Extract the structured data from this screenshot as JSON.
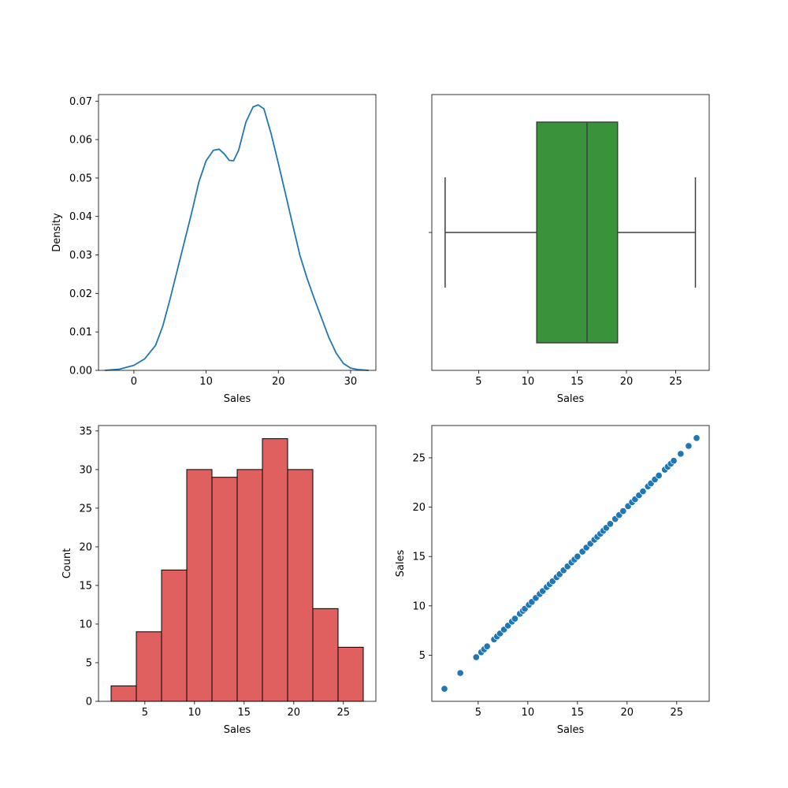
{
  "chart_data": [
    {
      "type": "line",
      "subtype": "kde",
      "title": "",
      "xlabel": "Sales",
      "ylabel": "Density",
      "xlim": [
        -4.9,
        33.5
      ],
      "ylim": [
        0,
        0.0717
      ],
      "xticks": [
        0,
        10,
        20,
        30
      ],
      "yticks": [
        0.0,
        0.01,
        0.02,
        0.03,
        0.04,
        0.05,
        0.06,
        0.07
      ],
      "ytick_labels": [
        "0.00",
        "0.01",
        "0.02",
        "0.03",
        "0.04",
        "0.05",
        "0.06",
        "0.07"
      ],
      "grid": false,
      "color": "#1f77b4",
      "x": [
        -4.0,
        -2.0,
        0.0,
        1.5,
        3.0,
        4.0,
        5.0,
        6.0,
        7.0,
        8.0,
        9.0,
        10.0,
        11.0,
        11.8,
        12.5,
        13.2,
        13.8,
        14.5,
        15.5,
        16.5,
        17.2,
        18.0,
        19.0,
        20.0,
        21.0,
        22.0,
        23.0,
        24.0,
        25.0,
        26.0,
        27.0,
        28.0,
        29.0,
        30.0,
        31.0,
        32.5
      ],
      "y": [
        0.0,
        0.0003,
        0.0013,
        0.003,
        0.0065,
        0.0115,
        0.0185,
        0.026,
        0.0335,
        0.041,
        0.049,
        0.0545,
        0.0572,
        0.0575,
        0.0563,
        0.0546,
        0.0545,
        0.0572,
        0.0645,
        0.0685,
        0.069,
        0.068,
        0.0615,
        0.0538,
        0.0458,
        0.0377,
        0.0298,
        0.0238,
        0.0185,
        0.0135,
        0.0085,
        0.0045,
        0.0018,
        0.0006,
        0.0002,
        0.0
      ]
    },
    {
      "type": "box",
      "title": "",
      "xlabel": "Sales",
      "ylabel": "",
      "xlim": [
        0.25,
        28.4
      ],
      "xticks": [
        5,
        10,
        15,
        20,
        25
      ],
      "grid": false,
      "color": "#3a923a",
      "line_color": "#3f3f3f",
      "whisker_low": 1.6,
      "q1": 10.9,
      "median": 16.0,
      "q3": 19.1,
      "whisker_high": 27.0
    },
    {
      "type": "bar",
      "subtype": "histogram",
      "title": "",
      "xlabel": "Sales",
      "ylabel": "Count",
      "xlim": [
        0.33,
        28.27
      ],
      "ylim": [
        0,
        35.7
      ],
      "xticks": [
        5,
        10,
        15,
        20,
        25
      ],
      "yticks": [
        0,
        5,
        10,
        15,
        20,
        25,
        30,
        35
      ],
      "grid": false,
      "color": "#e06060",
      "edge_color": "#000000",
      "bin_edges": [
        1.6,
        4.14,
        6.68,
        9.22,
        11.76,
        14.3,
        16.84,
        19.38,
        21.92,
        24.46,
        27.0
      ],
      "values": [
        2,
        9,
        17,
        30,
        29,
        30,
        34,
        30,
        12,
        7
      ]
    },
    {
      "type": "scatter",
      "title": "",
      "xlabel": "Sales",
      "ylabel": "Sales",
      "xlim": [
        0.33,
        28.27
      ],
      "ylim": [
        0.33,
        28.27
      ],
      "xticks": [
        5,
        10,
        15,
        20,
        25
      ],
      "yticks": [
        5,
        10,
        15,
        20,
        25
      ],
      "grid": false,
      "color": "#1f77b4",
      "x": [
        1.6,
        3.2,
        4.8,
        5.3,
        5.6,
        5.9,
        6.6,
        6.9,
        7.2,
        7.6,
        8.0,
        8.4,
        8.7,
        9.2,
        9.5,
        9.7,
        10.1,
        10.4,
        10.8,
        11.2,
        11.5,
        11.9,
        12.2,
        12.5,
        12.9,
        13.2,
        13.6,
        14.0,
        14.4,
        14.7,
        15.0,
        15.5,
        15.9,
        16.3,
        16.7,
        17.0,
        17.3,
        17.6,
        17.9,
        18.3,
        18.8,
        19.2,
        19.6,
        20.1,
        20.5,
        20.8,
        21.2,
        21.6,
        22.1,
        22.4,
        22.8,
        23.2,
        23.8,
        24.1,
        24.4,
        24.7,
        25.4,
        26.2,
        27.0
      ],
      "y": [
        1.6,
        3.2,
        4.8,
        5.3,
        5.6,
        5.9,
        6.6,
        6.9,
        7.2,
        7.6,
        8.0,
        8.4,
        8.7,
        9.2,
        9.5,
        9.7,
        10.1,
        10.4,
        10.8,
        11.2,
        11.5,
        11.9,
        12.2,
        12.5,
        12.9,
        13.2,
        13.6,
        14.0,
        14.4,
        14.7,
        15.0,
        15.5,
        15.9,
        16.3,
        16.7,
        17.0,
        17.3,
        17.6,
        17.9,
        18.3,
        18.8,
        19.2,
        19.6,
        20.1,
        20.5,
        20.8,
        21.2,
        21.6,
        22.1,
        22.4,
        22.8,
        23.2,
        23.8,
        24.1,
        24.4,
        24.7,
        25.4,
        26.2,
        27.0
      ]
    }
  ]
}
